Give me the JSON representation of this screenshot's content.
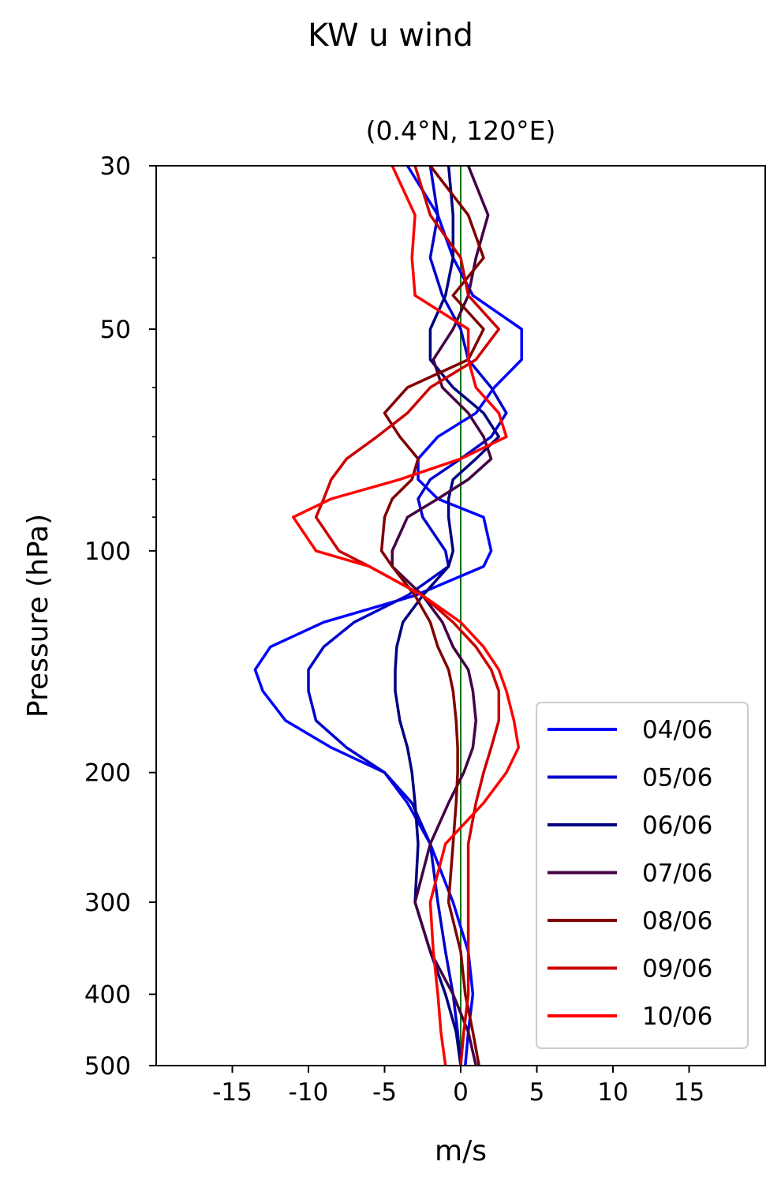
{
  "chart_data": {
    "type": "line",
    "title": "KW u wind",
    "subtitle": "(0.4°N, 120°E)",
    "xlabel": "m/s",
    "ylabel": "Pressure (hPa)",
    "xlim": [
      -20,
      20
    ],
    "ylim": [
      500,
      30
    ],
    "yscale": "log",
    "x_ticks": [
      -15,
      -10,
      -5,
      0,
      5,
      10,
      15
    ],
    "y_ticks": [
      30,
      50,
      100,
      200,
      300,
      400,
      500
    ],
    "y_minor_ticks": [
      40,
      60,
      70,
      80,
      90
    ],
    "reference_line": {
      "x": 0,
      "color": "#007700"
    },
    "legend_position": "lower right",
    "series": [
      {
        "name": "04/06",
        "color": "#0000ff",
        "pressure": [
          30,
          35,
          40,
          45,
          50,
          55,
          60,
          65,
          70,
          75,
          80,
          85,
          90,
          100,
          105,
          115,
          125,
          135,
          145,
          155,
          170,
          185,
          200,
          220,
          250,
          300,
          350,
          400,
          450,
          500
        ],
        "u": [
          -3.5,
          -1.5,
          -0.5,
          0.8,
          4,
          4,
          2.2,
          1,
          -1.5,
          -2.8,
          -2.8,
          -1.5,
          1.5,
          2,
          1.5,
          -3,
          -9,
          -12.5,
          -13.5,
          -13,
          -11.5,
          -8.5,
          -5,
          -3.5,
          -2,
          -0.5,
          0.5,
          0.8,
          0.5,
          0.3
        ]
      },
      {
        "name": "05/06",
        "color": "#0000cc",
        "pressure": [
          30,
          35,
          40,
          45,
          50,
          55,
          60,
          65,
          70,
          75,
          80,
          85,
          90,
          100,
          105,
          115,
          125,
          135,
          145,
          155,
          170,
          185,
          200,
          220,
          250,
          300,
          350,
          400,
          450,
          500
        ],
        "u": [
          -2,
          -1.5,
          -2,
          -1.2,
          0,
          0.5,
          2,
          3,
          2,
          0,
          -2,
          -2.8,
          -2.5,
          -1,
          -0.8,
          -3.5,
          -7,
          -9,
          -10,
          -10,
          -9.5,
          -7.5,
          -5,
          -3.2,
          -2,
          -1.5,
          -1,
          -0.5,
          -0.2,
          0
        ]
      },
      {
        "name": "06/06",
        "color": "#000080",
        "pressure": [
          30,
          35,
          40,
          45,
          50,
          55,
          60,
          65,
          70,
          75,
          80,
          85,
          90,
          100,
          105,
          115,
          125,
          135,
          145,
          155,
          170,
          185,
          200,
          220,
          250,
          300,
          350,
          400,
          450,
          500
        ],
        "u": [
          -0.8,
          -0.5,
          -0.5,
          -1,
          -2,
          -2,
          -0.5,
          1.5,
          2.5,
          1,
          -0.5,
          -0.8,
          -0.8,
          -0.5,
          -0.8,
          -2.5,
          -3.8,
          -4.2,
          -4.3,
          -4.3,
          -4,
          -3.5,
          -3.2,
          -3,
          -2.8,
          -3,
          -2,
          -1,
          -0.3,
          0
        ]
      },
      {
        "name": "07/06",
        "color": "#440044",
        "pressure": [
          30,
          35,
          40,
          45,
          50,
          55,
          60,
          65,
          70,
          75,
          80,
          85,
          90,
          100,
          105,
          115,
          125,
          135,
          145,
          155,
          170,
          185,
          200,
          220,
          250,
          300,
          350,
          400,
          450,
          500
        ],
        "u": [
          0.5,
          1.8,
          1,
          0.5,
          -0.5,
          -1.8,
          -1.2,
          0.5,
          1.5,
          2,
          0.5,
          -1.5,
          -3.5,
          -4.5,
          -4.5,
          -2.5,
          -1.2,
          -0.5,
          0.5,
          0.8,
          1,
          0.8,
          0.2,
          -0.8,
          -2,
          -3,
          -2,
          -0.5,
          0.5,
          1
        ]
      },
      {
        "name": "08/06",
        "color": "#800000",
        "pressure": [
          30,
          35,
          40,
          45,
          50,
          55,
          60,
          65,
          70,
          75,
          80,
          85,
          90,
          100,
          105,
          115,
          125,
          135,
          145,
          155,
          170,
          185,
          200,
          220,
          250,
          300,
          350,
          400,
          450,
          500
        ],
        "u": [
          -2,
          0.5,
          1.5,
          -0.5,
          1.5,
          0.5,
          -3.5,
          -5,
          -4,
          -2.8,
          -3.2,
          -4.5,
          -5,
          -5.2,
          -4.5,
          -3,
          -2,
          -1.5,
          -0.8,
          -0.5,
          -0.3,
          -0.2,
          -0.2,
          -0.3,
          -0.5,
          -0.8,
          0,
          0.3,
          0.8,
          1.2
        ]
      },
      {
        "name": "09/06",
        "color": "#cc0000",
        "pressure": [
          30,
          35,
          40,
          45,
          50,
          55,
          60,
          65,
          70,
          75,
          80,
          85,
          90,
          100,
          105,
          115,
          125,
          135,
          145,
          155,
          170,
          185,
          200,
          220,
          250,
          300,
          350,
          400,
          450,
          500
        ],
        "u": [
          -3,
          -2,
          0,
          0.5,
          2.5,
          1,
          -2,
          -3.5,
          -5.5,
          -7.5,
          -8.5,
          -9,
          -9.5,
          -8,
          -6,
          -2.5,
          -0.5,
          1,
          2,
          2.5,
          2.5,
          2,
          1.5,
          1,
          0.5,
          0.5,
          0.5,
          0.5,
          0.2,
          0
        ]
      },
      {
        "name": "10/06",
        "color": "#ff0000",
        "pressure": [
          30,
          35,
          40,
          45,
          50,
          55,
          60,
          65,
          70,
          75,
          80,
          85,
          90,
          100,
          105,
          115,
          125,
          135,
          145,
          155,
          170,
          185,
          200,
          220,
          250,
          300,
          350,
          400,
          450,
          500
        ],
        "u": [
          -4.5,
          -3,
          -3.2,
          -3,
          0.5,
          0.5,
          1,
          2.5,
          3,
          0,
          -4,
          -8.5,
          -11,
          -9.5,
          -6,
          -2.5,
          0,
          1.5,
          2.5,
          3,
          3.5,
          3.8,
          3,
          1.5,
          -1,
          -2,
          -1.8,
          -1.5,
          -1.3,
          -1
        ]
      }
    ]
  }
}
